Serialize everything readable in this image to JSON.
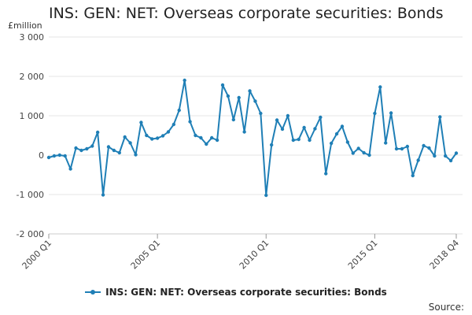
{
  "chart_data": {
    "type": "line",
    "title": "INS: GEN: NET: Overseas corporate securities: Bonds",
    "unit": "£million",
    "ylim": [
      -2000,
      3000
    ],
    "y_ticks": [
      3000,
      2000,
      1000,
      0,
      -1000,
      -2000
    ],
    "y_tick_labels": [
      "3 000",
      "2 000",
      "1 000",
      "0",
      "-1 000",
      "-2 000"
    ],
    "x_tick_labels": [
      "2000 Q1",
      "2005 Q1",
      "2010 Q1",
      "2015 Q1",
      "2018 Q4"
    ],
    "x_tick_positions": [
      "2000 Q1",
      "2005 Q1",
      "2010 Q1",
      "2015 Q1",
      "2018 Q4"
    ],
    "grid": true,
    "legend_position": "bottom",
    "series": [
      {
        "name": "INS: GEN: NET: Overseas corporate securities: Bonds",
        "color": "#1f7fb6",
        "x": [
          "2000 Q1",
          "2000 Q2",
          "2000 Q3",
          "2000 Q4",
          "2001 Q1",
          "2001 Q2",
          "2001 Q3",
          "2001 Q4",
          "2002 Q1",
          "2002 Q2",
          "2002 Q3",
          "2002 Q4",
          "2003 Q1",
          "2003 Q2",
          "2003 Q3",
          "2003 Q4",
          "2004 Q1",
          "2004 Q2",
          "2004 Q3",
          "2004 Q4",
          "2005 Q1",
          "2005 Q2",
          "2005 Q3",
          "2005 Q4",
          "2006 Q1",
          "2006 Q2",
          "2006 Q3",
          "2006 Q4",
          "2007 Q1",
          "2007 Q2",
          "2007 Q3",
          "2007 Q4",
          "2008 Q1",
          "2008 Q2",
          "2008 Q3",
          "2008 Q4",
          "2009 Q1",
          "2009 Q2",
          "2009 Q3",
          "2009 Q4",
          "2010 Q1",
          "2010 Q2",
          "2010 Q3",
          "2010 Q4",
          "2011 Q1",
          "2011 Q2",
          "2011 Q3",
          "2011 Q4",
          "2012 Q1",
          "2012 Q2",
          "2012 Q3",
          "2012 Q4",
          "2013 Q1",
          "2013 Q2",
          "2013 Q3",
          "2013 Q4",
          "2014 Q1",
          "2014 Q2",
          "2014 Q3",
          "2014 Q4",
          "2015 Q1",
          "2015 Q2",
          "2015 Q3",
          "2015 Q4",
          "2016 Q1",
          "2016 Q2",
          "2016 Q3",
          "2016 Q4",
          "2017 Q1",
          "2017 Q2",
          "2017 Q3",
          "2017 Q4",
          "2018 Q1",
          "2018 Q2",
          "2018 Q3",
          "2018 Q4"
        ],
        "values": [
          -60,
          -20,
          0,
          -20,
          -350,
          180,
          120,
          160,
          230,
          580,
          -1010,
          210,
          120,
          60,
          460,
          310,
          10,
          830,
          500,
          410,
          430,
          490,
          590,
          780,
          1140,
          1900,
          850,
          500,
          440,
          280,
          440,
          380,
          1780,
          1500,
          900,
          1460,
          590,
          1630,
          1370,
          1060,
          -1020,
          260,
          890,
          660,
          1000,
          380,
          400,
          700,
          380,
          670,
          960,
          -470,
          300,
          540,
          730,
          330,
          50,
          170,
          60,
          0,
          1060,
          1730,
          310,
          1070,
          160,
          160,
          220,
          -520,
          -130,
          240,
          180,
          -20,
          970,
          -20,
          -140,
          50
        ]
      }
    ]
  },
  "footer": {
    "source_label": "Source:"
  }
}
